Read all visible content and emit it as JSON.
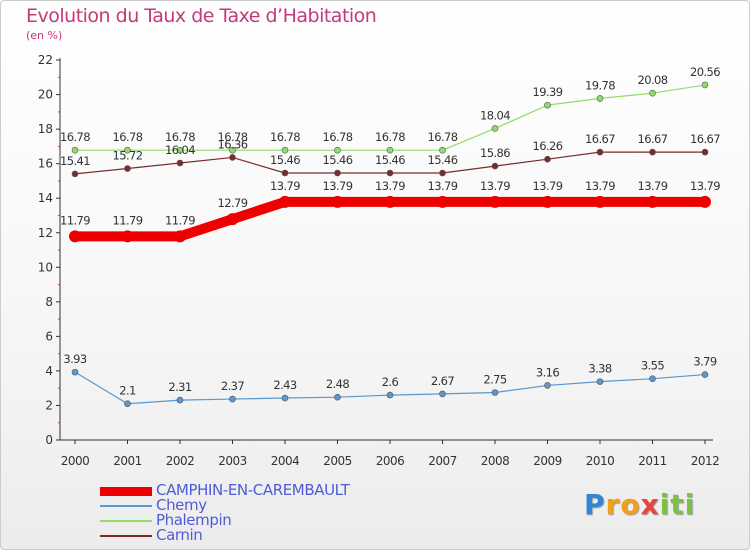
{
  "chart_data": {
    "type": "line",
    "title": "Evolution du Taux de Taxe d’Habitation",
    "unit_label": "(en %)",
    "x": [
      "2000",
      "2001",
      "2002",
      "2003",
      "2004",
      "2005",
      "2006",
      "2007",
      "2008",
      "2009",
      "2010",
      "2011",
      "2012"
    ],
    "y_ticks": [
      "0",
      "2",
      "4",
      "6",
      "8",
      "10",
      "12",
      "14",
      "16",
      "18",
      "20",
      "22"
    ],
    "ylim": [
      0,
      22
    ],
    "grid": false,
    "legend_position": "bottom-left",
    "series": [
      {
        "name": "CAMPHIN-EN-CAREMBAULT",
        "color": "#ee0000",
        "values": [
          11.79,
          11.79,
          11.79,
          12.79,
          13.79,
          13.79,
          13.79,
          13.79,
          13.79,
          13.79,
          13.79,
          13.79,
          13.79
        ],
        "labels": [
          "11.79",
          "11.79",
          "11.79",
          "12.79",
          "13.79",
          "13.79",
          "13.79",
          "13.79",
          "13.79",
          "13.79",
          "13.79",
          "13.79",
          "13.79"
        ]
      },
      {
        "name": "Chemy",
        "color": "#5a98cd",
        "values": [
          3.93,
          2.1,
          2.31,
          2.37,
          2.43,
          2.48,
          2.6,
          2.67,
          2.75,
          3.16,
          3.38,
          3.55,
          3.79
        ],
        "labels": [
          "3.93",
          "2.1",
          "2.31",
          "2.37",
          "2.43",
          "2.48",
          "2.6",
          "2.67",
          "2.75",
          "3.16",
          "3.38",
          "3.55",
          "3.79"
        ]
      },
      {
        "name": "Phalempin",
        "color": "#8fdc6c",
        "values": [
          16.78,
          16.78,
          16.78,
          16.78,
          16.78,
          16.78,
          16.78,
          16.78,
          18.04,
          19.39,
          19.78,
          20.08,
          20.56
        ],
        "labels": [
          "16.78",
          "16.78",
          "16.78",
          "16.78",
          "16.78",
          "16.78",
          "16.78",
          "16.78",
          "18.04",
          "19.39",
          "19.78",
          "20.08",
          "20.56"
        ]
      },
      {
        "name": "Carnin",
        "color": "#7a2c2c",
        "values": [
          15.41,
          15.72,
          16.04,
          16.36,
          15.46,
          15.46,
          15.46,
          15.46,
          15.86,
          16.26,
          16.67,
          16.67,
          16.67
        ],
        "labels": [
          "15.41",
          "15.72",
          "16.04",
          "16.36",
          "15.46",
          "15.46",
          "15.46",
          "15.46",
          "15.86",
          "16.26",
          "16.67",
          "16.67",
          "16.67"
        ]
      }
    ]
  },
  "logo": {
    "letters": [
      "P",
      "r",
      "o",
      "x",
      "i",
      "ti"
    ]
  }
}
